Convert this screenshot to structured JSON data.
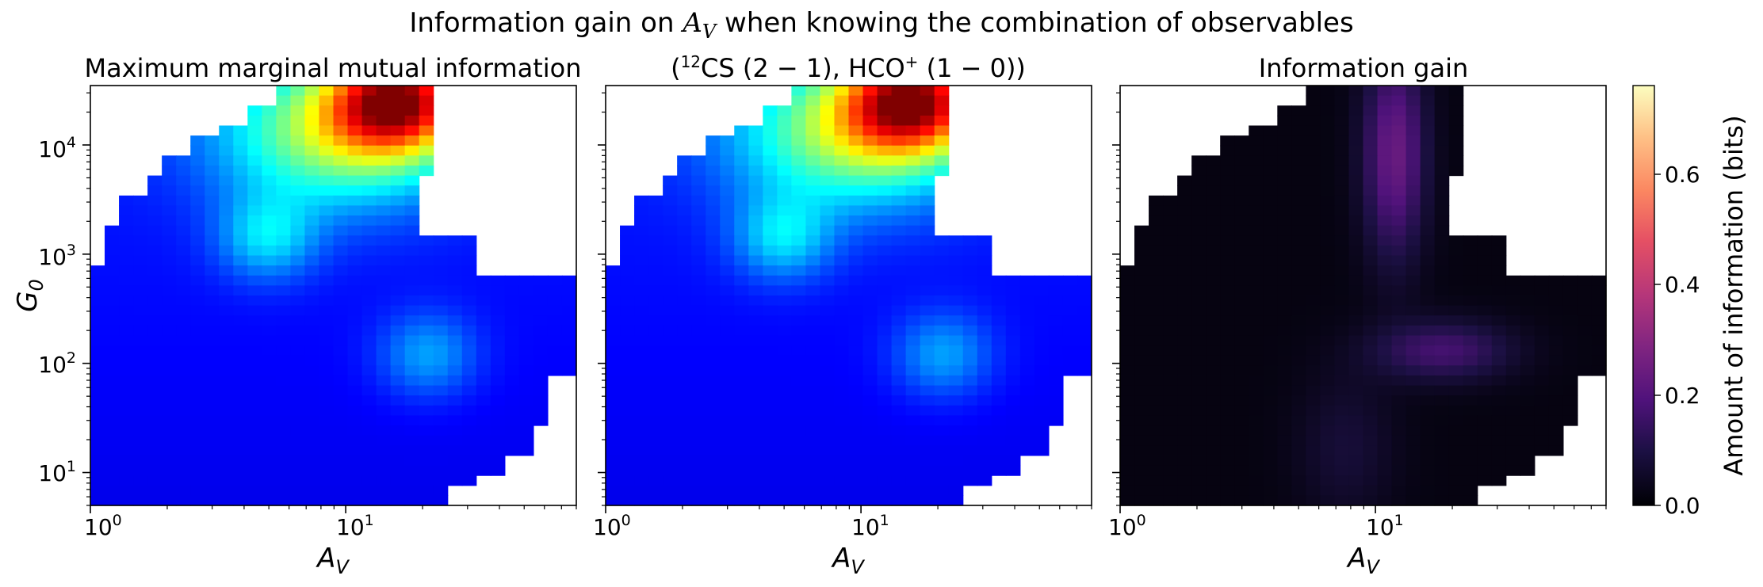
{
  "figure": {
    "suptitle": "Information gain on A_V when knowing the combination of observables",
    "suptitle_plain": "Information gain on ",
    "suptitle_var": "A",
    "suptitle_sub": "V",
    "suptitle_rest": " when knowing the combination of observables"
  },
  "chart_data": [
    {
      "type": "heatmap",
      "title": "Maximum marginal mutual information",
      "xlabel": "A_V",
      "ylabel": "G_0",
      "x_scale": "log",
      "y_scale": "log",
      "xlim": [
        1,
        80
      ],
      "ylim": [
        5,
        35000
      ],
      "x_ticks": [
        "10^0",
        "10^1"
      ],
      "y_ticks": [
        "10^1",
        "10^2",
        "10^3",
        "10^4"
      ],
      "colormap": "jet",
      "colorbar": null
    },
    {
      "type": "heatmap",
      "title": "(12CS (2−1), HCO+ (1−0))",
      "xlabel": "A_V",
      "ylabel": "",
      "x_scale": "log",
      "y_scale": "log",
      "xlim": [
        1,
        80
      ],
      "ylim": [
        5,
        35000
      ],
      "x_ticks": [
        "10^0",
        "10^1"
      ],
      "colormap": "jet",
      "colorbar": null
    },
    {
      "type": "heatmap",
      "title": "Information gain",
      "xlabel": "A_V",
      "ylabel": "",
      "x_scale": "log",
      "y_scale": "log",
      "xlim": [
        1,
        80
      ],
      "ylim": [
        5,
        35000
      ],
      "x_ticks": [
        "10^0",
        "10^1"
      ],
      "colormap": "magma",
      "colorbar": {
        "label": "Amount of information (bits)",
        "range": [
          0.0,
          0.76
        ],
        "ticks": [
          "0.0",
          "0.2",
          "0.4",
          "0.6"
        ]
      }
    }
  ],
  "labels": {
    "panel2_title_cs": "CS",
    "panel2_title_sup12": "12",
    "panel2_title_trans1": "(2 − 1),",
    "panel2_title_hco": "HCO",
    "panel2_title_plus": "+",
    "panel2_title_trans2": "(1 − 0)",
    "tick_base": "10",
    "tick_exp0": "0",
    "tick_exp1": "1",
    "tick_exp2": "2",
    "tick_exp3": "3",
    "tick_exp4": "4",
    "axis_A": "A",
    "axis_V": "V",
    "axis_G": "G",
    "axis_0": "0",
    "panel1_title": "Maximum marginal mutual information",
    "panel3_title": "Information gain",
    "cbar_label": "Amount of information (bits)",
    "cbar_t0": "0.0",
    "cbar_t1": "0.2",
    "cbar_t2": "0.4",
    "cbar_t3": "0.6"
  }
}
